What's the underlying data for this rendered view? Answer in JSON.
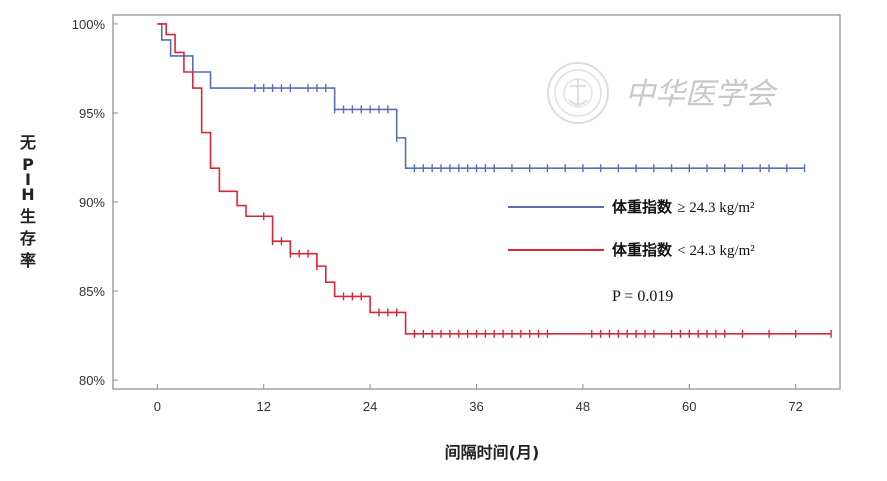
{
  "chart_data": {
    "type": "line",
    "step": true,
    "ylabel": "无PIH生存率",
    "xlabel": "间隔时间(月)",
    "xlim": [
      -5,
      77
    ],
    "ylim": [
      79.5,
      100.5
    ],
    "xticks": [
      0,
      12,
      24,
      36,
      48,
      60,
      72
    ],
    "yticks": [
      80,
      85,
      90,
      95,
      100
    ],
    "ytick_labels": [
      "80%",
      "85%",
      "90%",
      "95%",
      "100%"
    ],
    "annotation": "P = 0.019",
    "watermark": "中华医学会",
    "series": [
      {
        "name": "体重指数 ≥ 24.3 kg/m²",
        "color": "#5b6db3",
        "steps": [
          [
            0,
            100
          ],
          [
            0.5,
            99.1
          ],
          [
            1.5,
            98.2
          ],
          [
            4,
            97.3
          ],
          [
            6,
            96.4
          ],
          [
            20,
            95.2
          ],
          [
            27,
            93.6
          ],
          [
            28,
            91.9
          ],
          [
            73,
            91.9
          ]
        ],
        "censor_x": [
          11,
          12,
          13,
          14,
          15,
          17,
          18,
          19,
          20,
          21,
          22,
          23,
          24,
          25,
          26,
          27,
          29,
          30,
          31,
          32,
          33,
          34,
          35,
          36,
          37,
          38,
          40,
          42,
          44,
          46,
          48,
          50,
          52,
          54,
          56,
          58,
          60,
          62,
          64,
          66,
          68,
          69,
          71,
          73
        ]
      },
      {
        "name": "体重指数 < 24.3 kg/m²",
        "color": "#d9273a",
        "steps": [
          [
            0,
            100
          ],
          [
            1,
            99.4
          ],
          [
            2,
            98.4
          ],
          [
            3,
            97.3
          ],
          [
            4,
            96.4
          ],
          [
            5,
            93.9
          ],
          [
            6,
            91.9
          ],
          [
            7,
            90.6
          ],
          [
            9,
            89.8
          ],
          [
            10,
            89.2
          ],
          [
            13,
            87.8
          ],
          [
            15,
            87.1
          ],
          [
            18,
            86.4
          ],
          [
            19,
            85.5
          ],
          [
            20,
            84.7
          ],
          [
            24,
            83.8
          ],
          [
            28,
            82.6
          ],
          [
            76,
            82.6
          ]
        ],
        "censor_x": [
          12,
          13,
          14,
          15,
          16,
          17,
          18,
          21,
          22,
          23,
          25,
          26,
          27,
          29,
          30,
          31,
          32,
          33,
          34,
          35,
          36,
          37,
          38,
          39,
          40,
          41,
          42,
          43,
          44,
          49,
          50,
          51,
          52,
          53,
          54,
          55,
          56,
          58,
          59,
          60,
          61,
          62,
          63,
          64,
          66,
          69,
          72,
          76
        ]
      }
    ]
  }
}
